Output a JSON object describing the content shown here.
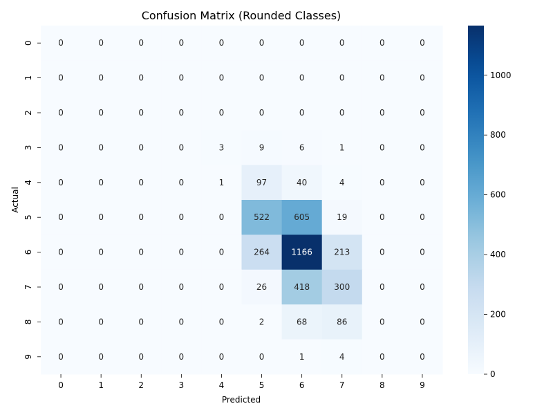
{
  "chart_data": {
    "type": "heatmap",
    "title": "Confusion Matrix (Rounded Classes)",
    "xlabel": "Predicted",
    "ylabel": "Actual",
    "x_categories": [
      "0",
      "1",
      "2",
      "3",
      "4",
      "5",
      "6",
      "7",
      "8",
      "9"
    ],
    "y_categories": [
      "0",
      "1",
      "2",
      "3",
      "4",
      "5",
      "6",
      "7",
      "8",
      "9"
    ],
    "values": [
      [
        0,
        0,
        0,
        0,
        0,
        0,
        0,
        0,
        0,
        0
      ],
      [
        0,
        0,
        0,
        0,
        0,
        0,
        0,
        0,
        0,
        0
      ],
      [
        0,
        0,
        0,
        0,
        0,
        0,
        0,
        0,
        0,
        0
      ],
      [
        0,
        0,
        0,
        0,
        3,
        9,
        6,
        1,
        0,
        0
      ],
      [
        0,
        0,
        0,
        0,
        1,
        97,
        40,
        4,
        0,
        0
      ],
      [
        0,
        0,
        0,
        0,
        0,
        522,
        605,
        19,
        0,
        0
      ],
      [
        0,
        0,
        0,
        0,
        0,
        264,
        1166,
        213,
        0,
        0
      ],
      [
        0,
        0,
        0,
        0,
        0,
        26,
        418,
        300,
        0,
        0
      ],
      [
        0,
        0,
        0,
        0,
        0,
        2,
        68,
        86,
        0,
        0
      ],
      [
        0,
        0,
        0,
        0,
        0,
        0,
        1,
        4,
        0,
        0
      ]
    ],
    "colormap": "Blues",
    "vmin": 0,
    "vmax": 1166,
    "colorbar_ticks": [
      0,
      200,
      400,
      600,
      800,
      1000
    ],
    "annotations": true,
    "grid": false
  }
}
